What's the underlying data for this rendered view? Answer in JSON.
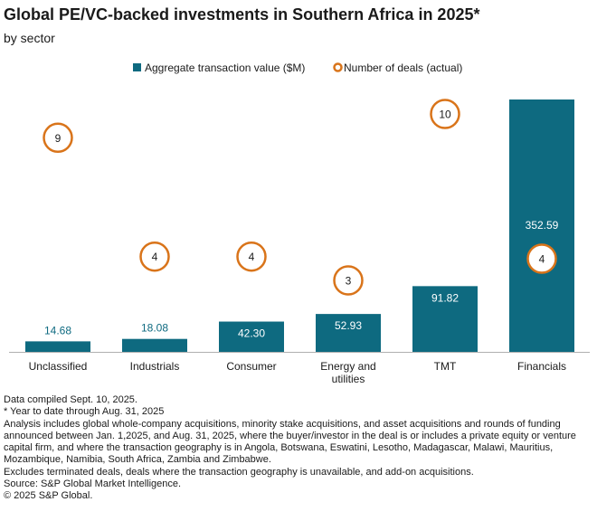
{
  "title": "Global PE/VC-backed investments in Southern Africa in 2025*",
  "subtitle": "by sector",
  "colors": {
    "bar": "#0e6a80",
    "deal_circle": "#d9741a",
    "axis": "#b0b0b0",
    "text": "#1a1a1a"
  },
  "chart_data": {
    "type": "bar",
    "categories": [
      "Unclassified",
      "Industrials",
      "Consumer",
      "Energy and utilities",
      "TMT",
      "Financials"
    ],
    "category_lines": [
      [
        "Unclassified"
      ],
      [
        "Industrials"
      ],
      [
        "Consumer"
      ],
      [
        "Energy and",
        "utilities"
      ],
      [
        "TMT"
      ],
      [
        "Financials"
      ]
    ],
    "series": [
      {
        "name": "Aggregate transaction value ($M)",
        "kind": "bar",
        "values": [
          14.68,
          18.08,
          42.3,
          52.93,
          91.82,
          352.59
        ],
        "labels": [
          "14.68",
          "18.08",
          "42.30",
          "52.93",
          "91.82",
          "352.59"
        ]
      },
      {
        "name": "Number of deals (actual)",
        "kind": "marker",
        "values": [
          9,
          4,
          4,
          3,
          10,
          4
        ],
        "labels": [
          "9",
          "4",
          "4",
          "3",
          "10",
          "4"
        ]
      }
    ],
    "bar_axis_range": [
      0,
      352.59
    ],
    "deal_axis_range": [
      0,
      12
    ],
    "legend_position": "top-center",
    "grid": false
  },
  "notes": [
    "Data compiled Sept. 10, 2025.",
    "* Year to date through Aug. 31, 2025",
    "Analysis includes global whole-company acquisitions, minority stake acquisitions, and asset acquisitions and rounds of funding announced between Jan. 1,2025, and Aug. 31, 2025, where the buyer/investor in the deal is or includes a private equity or venture capital firm, and where the transaction geography is in Angola, Botswana, Eswatini, Lesotho, Madagascar, Malawi, Mauritius, Mozambique, Namibia, South Africa, Zambia and Zimbabwe.",
    "Excludes terminated deals,  deals where the transaction geography is unavailable, and add-on acquisitions.",
    "Source: S&P Global Market Intelligence.",
    "© 2025 S&P Global."
  ]
}
